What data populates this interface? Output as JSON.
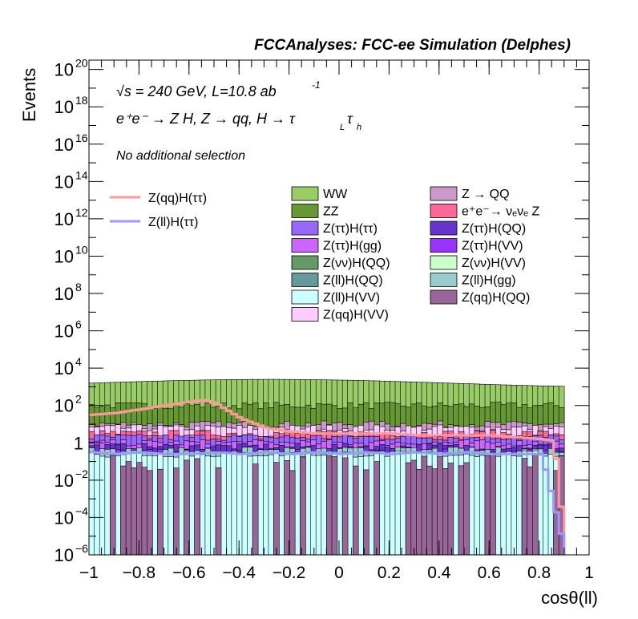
{
  "chart_data": {
    "type": "area",
    "title": "FCCAnalyses: FCC-ee Simulation (Delphes)",
    "xlabel": "cosθ(ll)",
    "ylabel": "Events",
    "xlim": [
      -1,
      1
    ],
    "ylim_log10": [
      -6,
      20.5
    ],
    "yscale": "log",
    "x_ticks": [
      {
        "v": -1,
        "label": "−1"
      },
      {
        "v": -0.8,
        "label": "−0.8"
      },
      {
        "v": -0.6,
        "label": "−0.6"
      },
      {
        "v": -0.4,
        "label": "−0.4"
      },
      {
        "v": -0.2,
        "label": "−0.2"
      },
      {
        "v": 0,
        "label": "0"
      },
      {
        "v": 0.2,
        "label": "0.2"
      },
      {
        "v": 0.4,
        "label": "0.4"
      },
      {
        "v": 0.6,
        "label": "0.6"
      },
      {
        "v": 0.8,
        "label": "0.8"
      },
      {
        "v": 1,
        "label": "1"
      }
    ],
    "y_ticks": [
      {
        "e": -6,
        "base": "10",
        "exp": "−6"
      },
      {
        "e": -4,
        "base": "10",
        "exp": "−4"
      },
      {
        "e": -2,
        "base": "10",
        "exp": "−2"
      },
      {
        "e": 0,
        "base": "1",
        "exp": ""
      },
      {
        "e": 2,
        "base": "10",
        "exp": "2"
      },
      {
        "e": 4,
        "base": "10",
        "exp": "4"
      },
      {
        "e": 6,
        "base": "10",
        "exp": "6"
      },
      {
        "e": 8,
        "base": "10",
        "exp": "8"
      },
      {
        "e": 10,
        "base": "10",
        "exp": "10"
      },
      {
        "e": 12,
        "base": "10",
        "exp": "12"
      },
      {
        "e": 14,
        "base": "10",
        "exp": "14"
      },
      {
        "e": 16,
        "base": "10",
        "exp": "16"
      },
      {
        "e": 18,
        "base": "10",
        "exp": "18"
      },
      {
        "e": 20,
        "base": "10",
        "exp": "20"
      }
    ],
    "annotations": {
      "energy": "√s = 240 GeV, L=10.8 ab",
      "energy_sup": "-1",
      "process": "e⁺e⁻ → Z H, Z → qq, H → τ",
      "process_sub1": "L",
      "process_tau": "τ",
      "process_sub2": "h",
      "selection": "No additional selection"
    },
    "stack_series": [
      {
        "name": "WW",
        "color": "#99cc66",
        "log10_approx": 3.2
      },
      {
        "name": "ZZ",
        "color": "#669933",
        "log10_approx": 2.0
      },
      {
        "name": "Z → QQ",
        "color": "#cc99cc",
        "log10_approx": 1.0
      },
      {
        "name": "Z(qq)H(VV)",
        "color": "#ffccff",
        "log10_approx": 0.8
      },
      {
        "name": "e⁺e⁻→ νₑνₑ Z",
        "color": "#ff6699",
        "log10_approx": 0.5
      },
      {
        "name": "Z(ττ)H(ττ)",
        "color": "#9966ff",
        "log10_approx": 0.3
      },
      {
        "name": "Z(ττ)H(gg)",
        "color": "#cc66ff",
        "log10_approx": 0.0
      },
      {
        "name": "Z(ττ)H(QQ)",
        "color": "#6633cc",
        "log10_approx": -0.2
      },
      {
        "name": "Z(ττ)H(VV)",
        "color": "#9933ff",
        "log10_approx": -0.5
      },
      {
        "name": "Z(νν)H(QQ)",
        "color": "#669966",
        "log10_approx": -1.0
      },
      {
        "name": "Z(νν)H(VV)",
        "color": "#ccffcc",
        "log10_approx": -1.5
      },
      {
        "name": "Z(ll)H(QQ)",
        "color": "#669999",
        "log10_approx": -1.5
      },
      {
        "name": "Z(ll)H(gg)",
        "color": "#99cccc",
        "log10_approx": -0.4
      },
      {
        "name": "Z(ll)H(VV)",
        "color": "#ccffff",
        "log10_approx": -0.6
      },
      {
        "name": "Z(qq)H(QQ)",
        "color": "#996699",
        "log10_approx": -5.0
      }
    ],
    "signal_series": [
      {
        "name": "Z(qq)H(ττ)",
        "color": "#ff9999",
        "x": [
          -1,
          -0.9,
          -0.8,
          -0.7,
          -0.6,
          -0.55,
          -0.5,
          -0.4,
          -0.3,
          -0.2,
          -0.1,
          0,
          0.1,
          0.2,
          0.3,
          0.4,
          0.5,
          0.6,
          0.7,
          0.8,
          0.85,
          0.9
        ],
        "log10": [
          1.5,
          1.6,
          1.8,
          2.0,
          2.2,
          2.3,
          2.1,
          1.3,
          0.8,
          0.6,
          0.5,
          0.5,
          0.5,
          0.5,
          0.4,
          0.4,
          0.4,
          0.4,
          0.3,
          0.2,
          0.1,
          -6
        ]
      },
      {
        "name": "Z(ll)H(ττ)",
        "color": "#9999ff",
        "x": [
          -1,
          -0.9,
          -0.8,
          -0.7,
          -0.6,
          -0.5,
          -0.4,
          -0.3,
          -0.2,
          -0.1,
          0,
          0.1,
          0.2,
          0.3,
          0.4,
          0.5,
          0.6,
          0.7,
          0.8,
          0.9
        ],
        "log10": [
          -0.5,
          -0.6,
          -0.5,
          -0.6,
          -0.6,
          -0.5,
          -0.6,
          -0.5,
          -0.6,
          -0.5,
          -0.6,
          -0.5,
          -0.6,
          -0.5,
          -0.6,
          -0.5,
          -0.6,
          -0.6,
          -0.6,
          -6
        ]
      }
    ],
    "legend_left": [
      {
        "label": "Z(qq)H(ττ)",
        "color": "#ff9999"
      },
      {
        "label": "Z(ll)H(ττ)",
        "color": "#9999ff"
      }
    ],
    "legend_col1": [
      {
        "label": "WW",
        "color": "#99cc66"
      },
      {
        "label": "ZZ",
        "color": "#669933"
      },
      {
        "label": "Z(ττ)H(ττ)",
        "color": "#9966ff"
      },
      {
        "label": "Z(ττ)H(gg)",
        "color": "#cc66ff"
      },
      {
        "label": "Z(νν)H(QQ)",
        "color": "#669966"
      },
      {
        "label": "Z(ll)H(QQ)",
        "color": "#669999"
      },
      {
        "label": "Z(ll)H(VV)",
        "color": "#ccffff"
      },
      {
        "label": "Z(qq)H(VV)",
        "color": "#ffccff"
      }
    ],
    "legend_col2": [
      {
        "label": "Z → QQ",
        "color": "#cc99cc"
      },
      {
        "label": "e⁺e⁻→ νₑνₑ Z",
        "color": "#ff6699"
      },
      {
        "label": "Z(ττ)H(QQ)",
        "color": "#6633cc"
      },
      {
        "label": "Z(ττ)H(VV)",
        "color": "#9933ff"
      },
      {
        "label": "Z(νν)H(VV)",
        "color": "#ccffcc"
      },
      {
        "label": "Z(ll)H(gg)",
        "color": "#99cccc"
      },
      {
        "label": "Z(qq)H(QQ)",
        "color": "#996699"
      }
    ]
  }
}
